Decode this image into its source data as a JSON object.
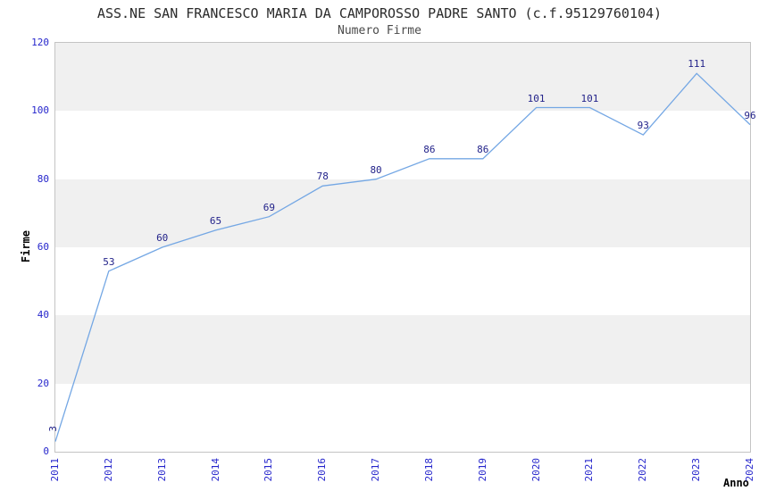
{
  "chart_data": {
    "type": "line",
    "title": "ASS.NE SAN FRANCESCO MARIA DA CAMPOROSSO PADRE SANTO (c.f.95129760104)",
    "subtitle": "Numero Firme",
    "xlabel": "Anno",
    "ylabel": "Firme",
    "categories": [
      "2011",
      "2012",
      "2013",
      "2014",
      "2015",
      "2016",
      "2017",
      "2018",
      "2019",
      "2020",
      "2021",
      "2022",
      "2023",
      "2024"
    ],
    "values": [
      3,
      53,
      60,
      65,
      69,
      78,
      80,
      86,
      86,
      101,
      101,
      93,
      111,
      96
    ],
    "ylim": [
      0,
      120
    ],
    "yticks": [
      0,
      20,
      40,
      60,
      80,
      100,
      120
    ],
    "grid": "alternating-horizontal-bands",
    "legend": "none",
    "data_labels_shown": true,
    "first_data_label_rotated": true,
    "x_tick_labels_rotated": true,
    "colors": {
      "line": "#74a7e4",
      "data_label": "#23238a",
      "tick_label": "#2626cc",
      "band_gray": "#f0f0f0",
      "band_white": "#ffffff",
      "frame": "#c4c4c4",
      "title": "#2b2b2b",
      "subtitle": "#4a4a4a",
      "axis_title": "#000000"
    }
  }
}
